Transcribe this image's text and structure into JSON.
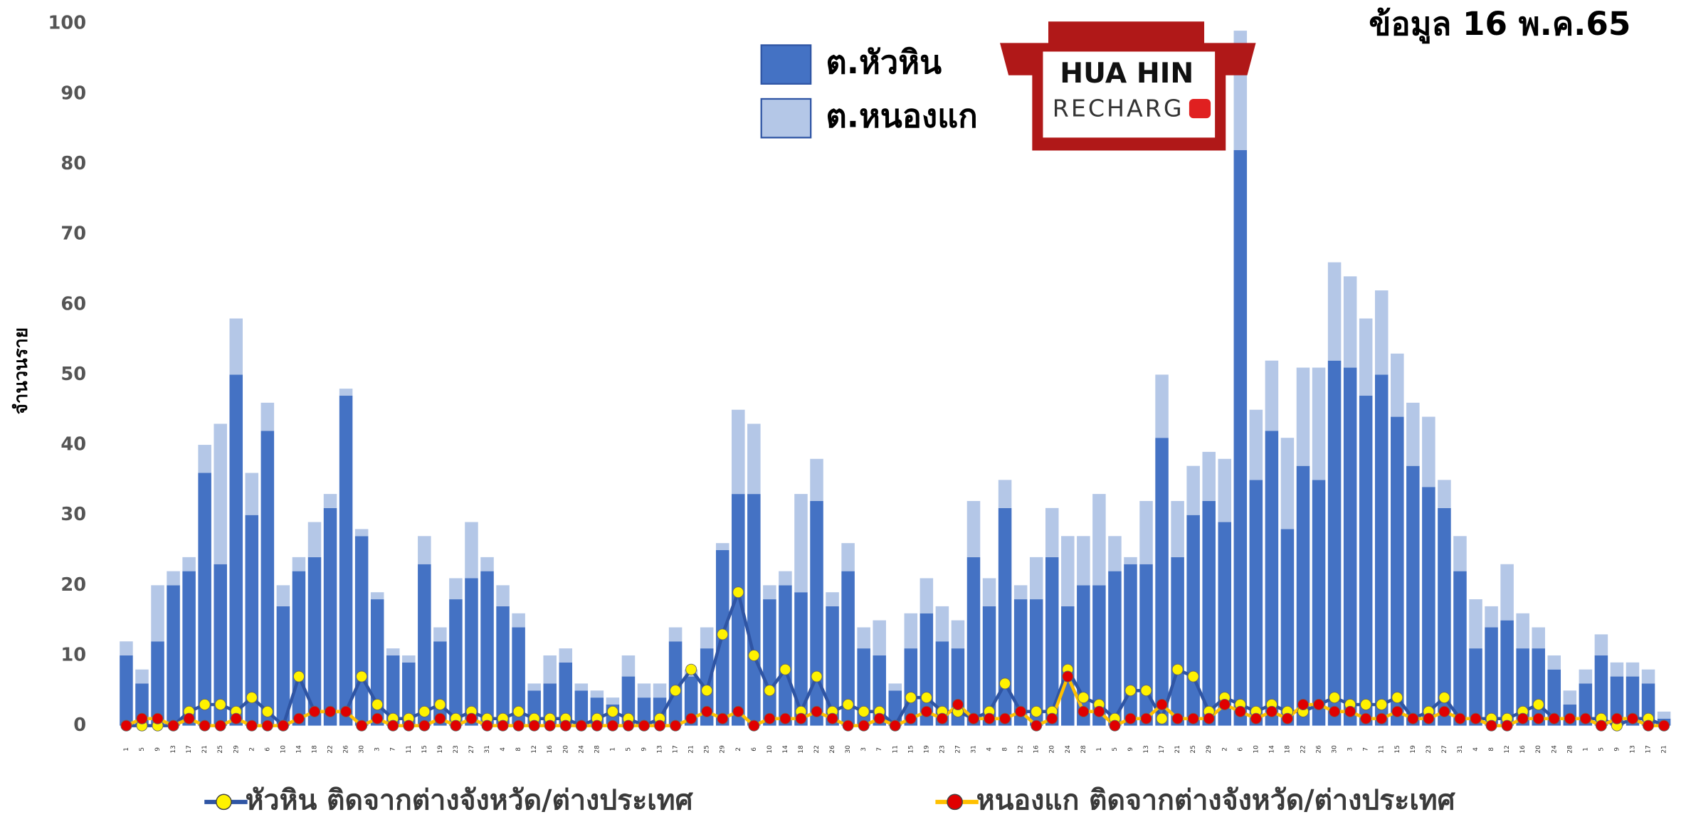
{
  "chart_data": {
    "type": "stacked_bar_line",
    "title": "ข้อมูล 16 พ.ค.65",
    "y_label": "จำนวนราย",
    "logo": {
      "line1": "HUA HIN",
      "line2": "RECHARG"
    },
    "ylim": [
      0,
      100
    ],
    "yticks": [
      0,
      10,
      20,
      30,
      40,
      50,
      60,
      70,
      80,
      90,
      100
    ],
    "grid": false,
    "categories": [
      "1",
      "5",
      "9",
      "13",
      "17",
      "21",
      "25",
      "29",
      "2",
      "6",
      "10",
      "14",
      "18",
      "22",
      "26",
      "30",
      "3",
      "7",
      "11",
      "15",
      "19",
      "23",
      "27",
      "31",
      "4",
      "8",
      "12",
      "16",
      "20",
      "24",
      "28",
      "1",
      "5",
      "9",
      "13",
      "17",
      "21",
      "25",
      "29",
      "2",
      "6",
      "10",
      "14",
      "18",
      "22",
      "26",
      "30",
      "3",
      "7",
      "11",
      "15",
      "19",
      "23",
      "27",
      "31",
      "4",
      "8",
      "12",
      "16",
      "20",
      "24",
      "28",
      "1",
      "5",
      "9",
      "13",
      "17",
      "21",
      "25",
      "29",
      "2",
      "6",
      "10",
      "14",
      "18",
      "22",
      "26",
      "30",
      "3",
      "7",
      "11",
      "15",
      "19",
      "23",
      "27",
      "31",
      "4",
      "8",
      "12",
      "16",
      "20",
      "24",
      "28",
      "1",
      "5",
      "9",
      "13",
      "17",
      "21"
    ],
    "series": [
      {
        "name": "ต.หัวหิน",
        "kind": "bar",
        "color": "#4472c4",
        "values": [
          10,
          6,
          12,
          20,
          22,
          36,
          23,
          50,
          30,
          42,
          17,
          22,
          24,
          31,
          47,
          27,
          18,
          10,
          9,
          23,
          12,
          18,
          21,
          22,
          17,
          14,
          5,
          6,
          9,
          5,
          4,
          3,
          7,
          4,
          4,
          12,
          7,
          11,
          25,
          33,
          33,
          18,
          20,
          19,
          32,
          17,
          22,
          11,
          10,
          5,
          11,
          16,
          12,
          11,
          24,
          17,
          31,
          18,
          18,
          24,
          17,
          20,
          20,
          22,
          23,
          23,
          41,
          24,
          30,
          32,
          29,
          82,
          35,
          42,
          28,
          37,
          35,
          52,
          51,
          47,
          50,
          44,
          37,
          34,
          31,
          22,
          11,
          14,
          15,
          11,
          11,
          8,
          3,
          6,
          10,
          7,
          7,
          6,
          1
        ]
      },
      {
        "name": "ต.หนองแก",
        "kind": "bar",
        "color": "#b4c7e7",
        "values": [
          2,
          2,
          8,
          2,
          2,
          4,
          20,
          8,
          6,
          4,
          3,
          2,
          5,
          2,
          1,
          1,
          1,
          1,
          1,
          4,
          2,
          3,
          8,
          2,
          3,
          2,
          1,
          4,
          2,
          1,
          1,
          1,
          3,
          2,
          2,
          2,
          1,
          3,
          1,
          12,
          10,
          2,
          2,
          14,
          6,
          2,
          4,
          3,
          5,
          1,
          5,
          5,
          5,
          4,
          8,
          4,
          4,
          2,
          6,
          7,
          10,
          7,
          13,
          5,
          1,
          9,
          9,
          8,
          7,
          7,
          9,
          17,
          10,
          10,
          13,
          14,
          16,
          14,
          13,
          11,
          12,
          9,
          9,
          10,
          4,
          5,
          7,
          3,
          8,
          5,
          3,
          2,
          2,
          2,
          3,
          2,
          2,
          2,
          1
        ]
      },
      {
        "name": "หัวหิน ติดจากต่างจังหวัด/ต่างประเทศ",
        "kind": "line",
        "color": "#2f55a4",
        "marker_color": "#fff200",
        "values": [
          0,
          0,
          0,
          0,
          2,
          3,
          3,
          2,
          4,
          2,
          0,
          7,
          2,
          2,
          2,
          7,
          3,
          1,
          1,
          2,
          3,
          1,
          2,
          1,
          1,
          2,
          1,
          1,
          1,
          0,
          1,
          2,
          1,
          0,
          1,
          5,
          8,
          5,
          13,
          19,
          10,
          5,
          8,
          2,
          7,
          2,
          3,
          2,
          2,
          0,
          4,
          4,
          2,
          2,
          1,
          2,
          6,
          2,
          2,
          2,
          8,
          4,
          3,
          1,
          5,
          5,
          1,
          8,
          7,
          2,
          4,
          3,
          2,
          3,
          2,
          2,
          3,
          4,
          3,
          3,
          3,
          4,
          1,
          2,
          4,
          1,
          1,
          1,
          1,
          2,
          3,
          1,
          1,
          1,
          1,
          0,
          1,
          1,
          0
        ]
      },
      {
        "name": "หนองแก ติดจากต่างจังหวัด/ต่างประเทศ",
        "kind": "line",
        "color": "#ffc000",
        "marker_color": "#e00000",
        "values": [
          0,
          1,
          1,
          0,
          1,
          0,
          0,
          1,
          0,
          0,
          0,
          1,
          2,
          2,
          2,
          0,
          1,
          0,
          0,
          0,
          1,
          0,
          1,
          0,
          0,
          0,
          0,
          0,
          0,
          0,
          0,
          0,
          0,
          0,
          0,
          0,
          1,
          2,
          1,
          2,
          0,
          1,
          1,
          1,
          2,
          1,
          0,
          0,
          1,
          0,
          1,
          2,
          1,
          3,
          1,
          1,
          1,
          2,
          0,
          1,
          7,
          2,
          2,
          0,
          1,
          1,
          3,
          1,
          1,
          1,
          3,
          2,
          1,
          2,
          1,
          3,
          3,
          2,
          2,
          1,
          1,
          2,
          1,
          1,
          2,
          1,
          1,
          0,
          0,
          1,
          1,
          1,
          1,
          1,
          0,
          1,
          1,
          0,
          0
        ]
      }
    ]
  }
}
